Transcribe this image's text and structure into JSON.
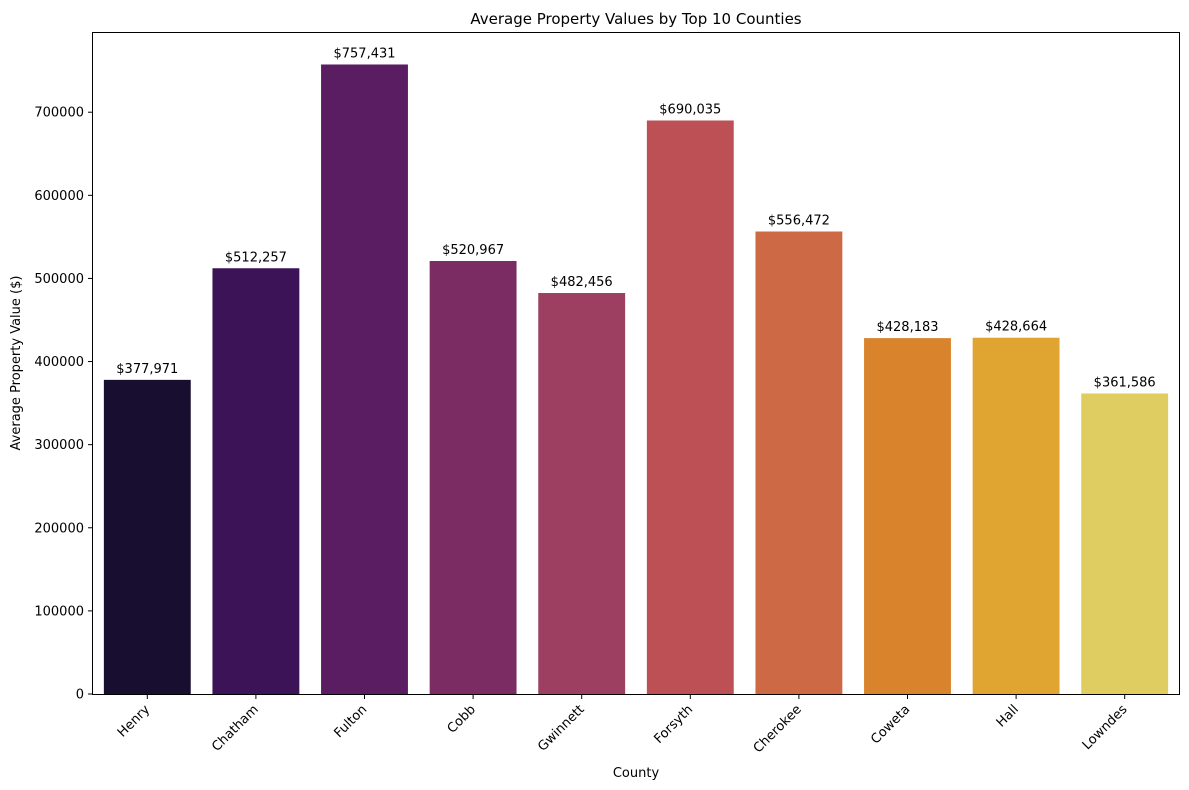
{
  "chart_data": {
    "type": "bar",
    "title": "Average Property Values by Top 10 Counties",
    "xlabel": "County",
    "ylabel": "Average Property Value ($)",
    "categories": [
      "Henry",
      "Chatham",
      "Fulton",
      "Cobb",
      "Gwinnett",
      "Forsyth",
      "Cherokee",
      "Coweta",
      "Hall",
      "Lowndes"
    ],
    "values": [
      377971,
      512257,
      757431,
      520967,
      482456,
      690035,
      556472,
      428183,
      428664,
      361586
    ],
    "data_labels": [
      "$377,971",
      "$512,257",
      "$757,431",
      "$520,967",
      "$482,456",
      "$690,035",
      "$556,472",
      "$428,183",
      "$428,664",
      "$361,586"
    ],
    "colors": [
      "#180f30",
      "#3b1356",
      "#5b1d62",
      "#7b2c62",
      "#9c3f60",
      "#bc5055",
      "#ce6946",
      "#d9842c",
      "#e0a431",
      "#e0cd62"
    ],
    "yticks": [
      "0",
      "100000",
      "200000",
      "300000",
      "400000",
      "500000",
      "600000",
      "700000"
    ],
    "ytick_values": [
      0,
      100000,
      200000,
      300000,
      400000,
      500000,
      600000,
      700000
    ],
    "ylim": [
      0,
      795303
    ],
    "grid": false,
    "legend": "none"
  }
}
